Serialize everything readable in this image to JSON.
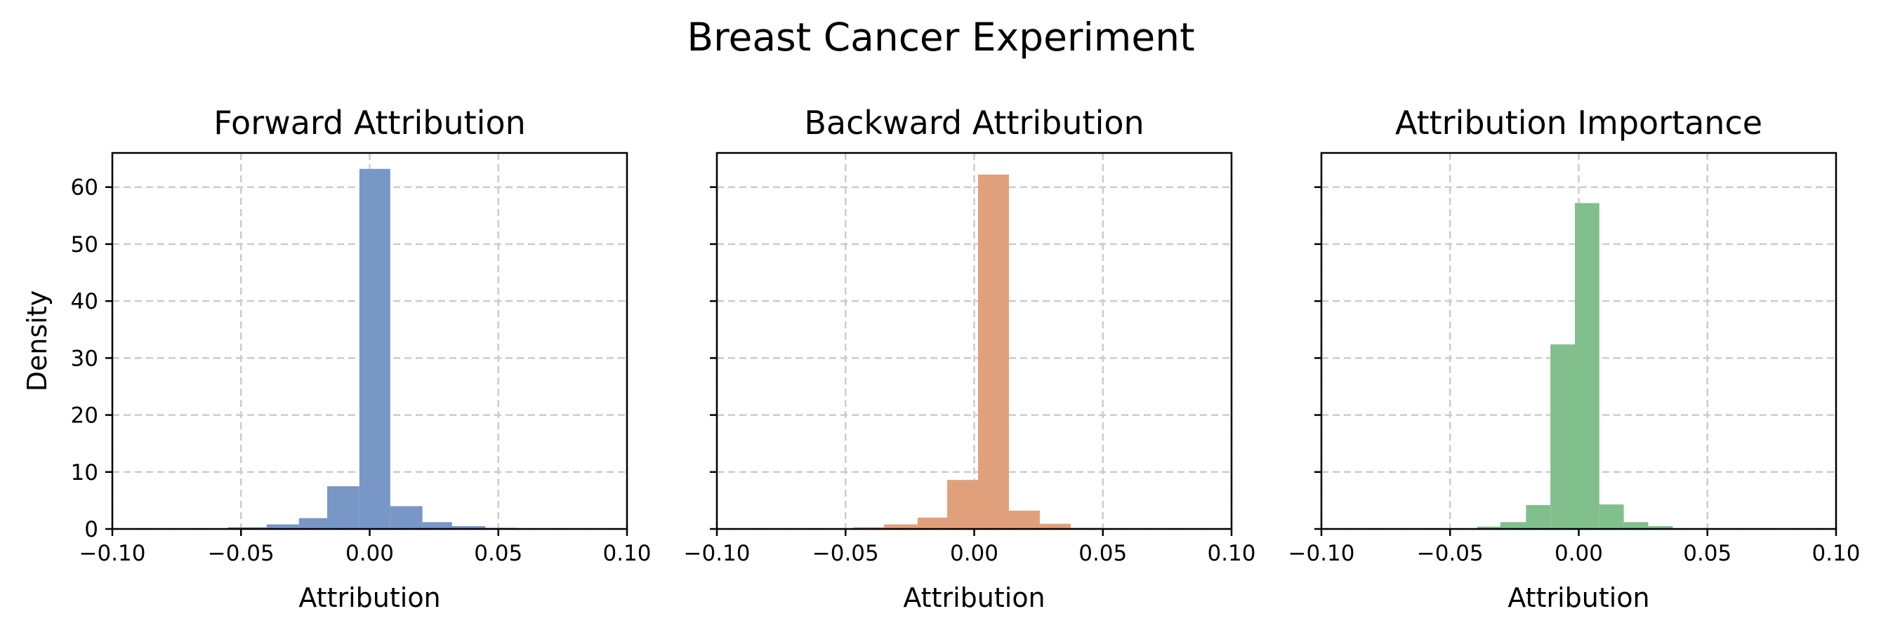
{
  "figure": {
    "title": "Breast Cancer Experiment"
  },
  "chart_data": [
    {
      "type": "bar",
      "title": "Forward Attribution",
      "xlabel": "Attribution",
      "ylabel": "Density",
      "xlim": [
        -0.1,
        0.1
      ],
      "ylim": [
        0,
        66
      ],
      "xticks": [
        -0.1,
        -0.05,
        0.0,
        0.05,
        0.1
      ],
      "xtick_labels": [
        "−0.10",
        "−0.05",
        "0.00",
        "0.05",
        "0.10"
      ],
      "yticks": [
        0,
        10,
        20,
        30,
        40,
        50,
        60
      ],
      "ytick_labels": [
        "0",
        "10",
        "20",
        "30",
        "40",
        "50",
        "60"
      ],
      "show_ytick_labels": true,
      "grid": true,
      "color": "#7896c6",
      "bins": [
        {
          "x0": -0.0675,
          "x1": -0.055,
          "value": 0.1
        },
        {
          "x0": -0.055,
          "x1": -0.04,
          "value": 0.3
        },
        {
          "x0": -0.04,
          "x1": -0.0275,
          "value": 0.8
        },
        {
          "x0": -0.0275,
          "x1": -0.0165,
          "value": 1.9
        },
        {
          "x0": -0.0165,
          "x1": -0.004,
          "value": 7.5
        },
        {
          "x0": -0.004,
          "x1": 0.008,
          "value": 63.2
        },
        {
          "x0": 0.008,
          "x1": 0.0205,
          "value": 4.0
        },
        {
          "x0": 0.0205,
          "x1": 0.032,
          "value": 1.2
        },
        {
          "x0": 0.032,
          "x1": 0.045,
          "value": 0.5
        },
        {
          "x0": 0.045,
          "x1": 0.057,
          "value": 0.2
        }
      ]
    },
    {
      "type": "bar",
      "title": "Backward Attribution",
      "xlabel": "Attribution",
      "ylabel": "",
      "xlim": [
        -0.1,
        0.1
      ],
      "ylim": [
        0,
        66
      ],
      "xticks": [
        -0.1,
        -0.05,
        0.0,
        0.05,
        0.1
      ],
      "xtick_labels": [
        "−0.10",
        "−0.05",
        "0.00",
        "0.05",
        "0.10"
      ],
      "yticks": [
        0,
        10,
        20,
        30,
        40,
        50,
        60
      ],
      "ytick_labels": [
        "",
        "",
        "",
        "",
        "",
        "",
        ""
      ],
      "show_ytick_labels": false,
      "grid": true,
      "color": "#e1a07c",
      "bins": [
        {
          "x0": -0.0595,
          "x1": -0.047,
          "value": 0.1
        },
        {
          "x0": -0.047,
          "x1": -0.035,
          "value": 0.3
        },
        {
          "x0": -0.035,
          "x1": -0.022,
          "value": 0.8
        },
        {
          "x0": -0.022,
          "x1": -0.0105,
          "value": 2.0
        },
        {
          "x0": -0.0105,
          "x1": 0.0015,
          "value": 8.6
        },
        {
          "x0": 0.0015,
          "x1": 0.0135,
          "value": 62.2
        },
        {
          "x0": 0.0135,
          "x1": 0.0255,
          "value": 3.2
        },
        {
          "x0": 0.0255,
          "x1": 0.0375,
          "value": 0.9
        },
        {
          "x0": 0.0375,
          "x1": 0.0495,
          "value": 0.2
        },
        {
          "x0": 0.0495,
          "x1": 0.0615,
          "value": 0.1
        }
      ]
    },
    {
      "type": "bar",
      "title": "Attribution Importance",
      "xlabel": "Attribution",
      "ylabel": "",
      "xlim": [
        -0.1,
        0.1
      ],
      "ylim": [
        0,
        66
      ],
      "xticks": [
        -0.1,
        -0.05,
        0.0,
        0.05,
        0.1
      ],
      "xtick_labels": [
        "−0.10",
        "−0.05",
        "0.00",
        "0.05",
        "0.10"
      ],
      "yticks": [
        0,
        10,
        20,
        30,
        40,
        50,
        60
      ],
      "ytick_labels": [
        "",
        "",
        "",
        "",
        "",
        "",
        ""
      ],
      "show_ytick_labels": false,
      "grid": true,
      "color": "#81bf8d",
      "bins": [
        {
          "x0": -0.0395,
          "x1": -0.0305,
          "value": 0.4
        },
        {
          "x0": -0.0305,
          "x1": -0.0205,
          "value": 1.2
        },
        {
          "x0": -0.0205,
          "x1": -0.011,
          "value": 4.2
        },
        {
          "x0": -0.011,
          "x1": -0.0015,
          "value": 32.4
        },
        {
          "x0": -0.0015,
          "x1": 0.008,
          "value": 57.2
        },
        {
          "x0": 0.008,
          "x1": 0.0175,
          "value": 4.3
        },
        {
          "x0": 0.0175,
          "x1": 0.027,
          "value": 1.2
        },
        {
          "x0": 0.027,
          "x1": 0.0365,
          "value": 0.5
        }
      ]
    }
  ]
}
